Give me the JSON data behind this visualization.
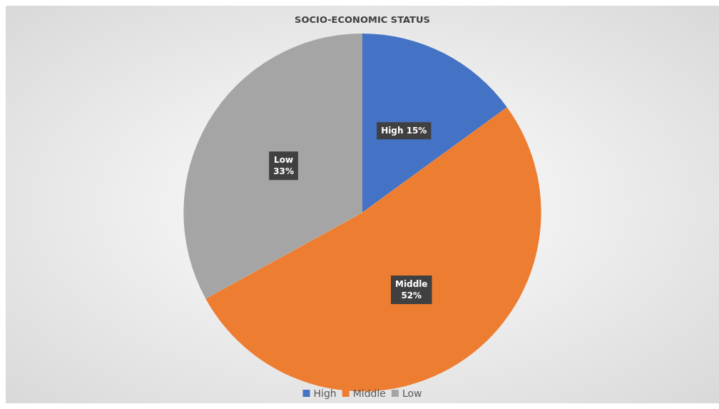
{
  "chart_data": {
    "type": "pie",
    "title": "SOCIO-ECONOMIC STATUS",
    "categories": [
      "High",
      "Middle",
      "Low"
    ],
    "values": [
      15,
      52,
      33
    ],
    "colors": [
      "#4472c4",
      "#ed7d31",
      "#a5a5a5"
    ],
    "value_labels": [
      "15%",
      "52%",
      "33%"
    ],
    "legend": "bottom"
  }
}
